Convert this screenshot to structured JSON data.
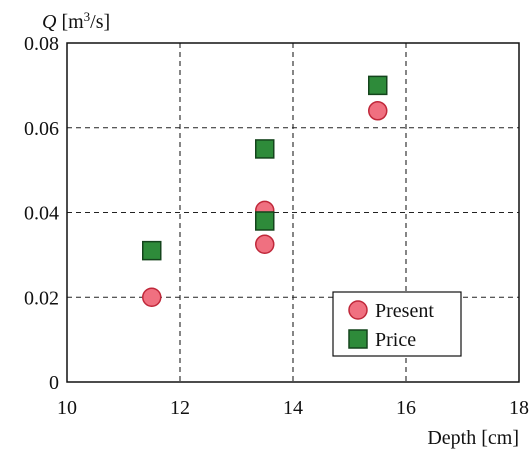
{
  "chart_data": {
    "type": "scatter",
    "ylabel": "Q [m³/s]",
    "xlabel": "Depth [cm]",
    "xlim": [
      10,
      18
    ],
    "ylim": [
      0,
      0.08
    ],
    "x_ticks": [
      10,
      12,
      14,
      16,
      18
    ],
    "x_tick_labels": [
      "10",
      "12",
      "14",
      "16",
      "18"
    ],
    "y_ticks": [
      0,
      0.02,
      0.04,
      0.06,
      0.08
    ],
    "y_tick_labels": [
      "0",
      "0.02",
      "0.04",
      "0.06",
      "0.08"
    ],
    "grid": "dashed",
    "legend_position": "bottom-right",
    "series": [
      {
        "name": "Present",
        "marker": "circle",
        "color": "#f07080",
        "points": [
          {
            "x": 11.5,
            "y": 0.02
          },
          {
            "x": 13.5,
            "y": 0.0405
          },
          {
            "x": 13.5,
            "y": 0.0325
          },
          {
            "x": 15.5,
            "y": 0.064
          }
        ]
      },
      {
        "name": "Price",
        "marker": "square",
        "color": "#2e8b3a",
        "points": [
          {
            "x": 11.5,
            "y": 0.031
          },
          {
            "x": 13.5,
            "y": 0.055
          },
          {
            "x": 13.5,
            "y": 0.038
          },
          {
            "x": 15.5,
            "y": 0.07
          }
        ]
      }
    ]
  }
}
